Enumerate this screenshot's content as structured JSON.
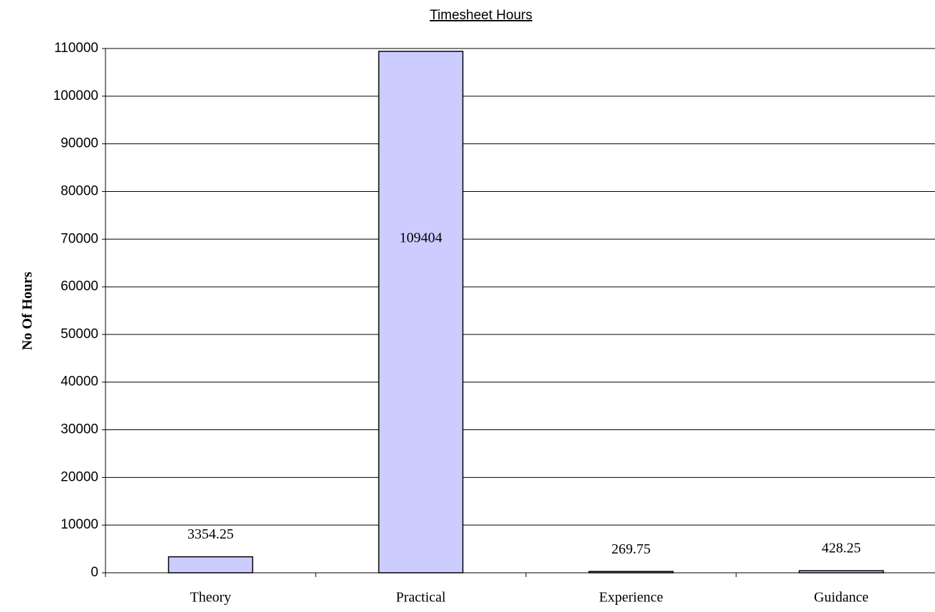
{
  "chart_data": {
    "type": "bar",
    "title": "Timesheet Hours",
    "y_label": "No Of Hours",
    "categories": [
      "Theory",
      "Practical",
      "Experience",
      "Guidance"
    ],
    "values": [
      3354.25,
      109404,
      269.75,
      428.25
    ],
    "color": "#ccccff",
    "ylim": [
      0,
      110000
    ],
    "yticks": [
      0,
      10000,
      20000,
      30000,
      40000,
      50000,
      60000,
      70000,
      80000,
      90000,
      100000,
      110000
    ],
    "grid": true
  }
}
